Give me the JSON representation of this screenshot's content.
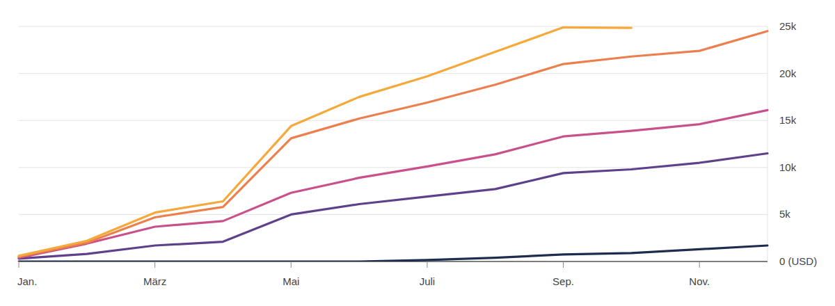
{
  "chart_data": {
    "type": "line",
    "categories": [
      "Jan.",
      null,
      "März",
      null,
      "Mai",
      null,
      "Juli",
      null,
      "Sep.",
      null,
      "Nov.",
      null
    ],
    "series": [
      {
        "color": "#f4a93a",
        "values": [
          600,
          2200,
          5200,
          6400,
          14400,
          17500,
          19700,
          22300,
          24900,
          24850,
          null,
          null
        ]
      },
      {
        "color": "#ec7f4e",
        "values": [
          500,
          2000,
          4700,
          5800,
          13100,
          15200,
          16900,
          18800,
          21000,
          21800,
          22400,
          24500
        ]
      },
      {
        "color": "#c9508a",
        "values": [
          400,
          1900,
          3700,
          4300,
          7300,
          8900,
          10100,
          11400,
          13300,
          13900,
          14600,
          16100
        ]
      },
      {
        "color": "#5e418a",
        "values": [
          300,
          800,
          1700,
          2100,
          5000,
          6100,
          6900,
          7700,
          9400,
          9800,
          10500,
          11500
        ]
      },
      {
        "color": "#1e2d4e",
        "values": [
          0,
          0,
          0,
          0,
          0,
          0,
          150,
          400,
          750,
          900,
          1300,
          1700
        ]
      }
    ],
    "ylim": [
      0,
      25000
    ],
    "yticks": [
      {
        "value": 0,
        "label": "0 (USD)"
      },
      {
        "value": 5000,
        "label": "5k"
      },
      {
        "value": 10000,
        "label": "10k"
      },
      {
        "value": 15000,
        "label": "15k"
      },
      {
        "value": 20000,
        "label": "20k"
      },
      {
        "value": 25000,
        "label": "25k"
      }
    ],
    "grid": true
  }
}
